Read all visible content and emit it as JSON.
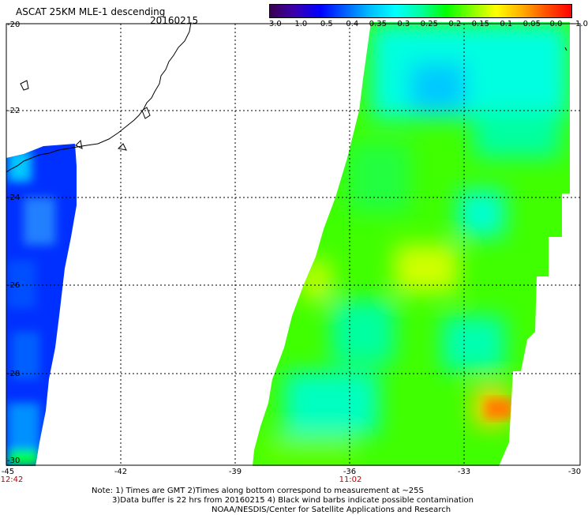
{
  "header": {
    "title": "ASCAT 25KM MLE-1 descending",
    "date": "20160215"
  },
  "colorbar": {
    "labels": [
      "-3.0",
      "-1.0",
      "-0.5",
      "-0.4",
      "-0.35",
      "-0.3",
      "-0.25",
      "-0.2",
      "-0.15",
      "-0.1",
      "-0.05",
      "0.0",
      "1.0"
    ],
    "colors": [
      "#3a0050",
      "#3a00b0",
      "#0000ff",
      "#0060ff",
      "#00c0ff",
      "#00ffff",
      "#00ffa0",
      "#00ff00",
      "#80ff00",
      "#ffff00",
      "#ffb000",
      "#ff5000",
      "#ff0000"
    ]
  },
  "map": {
    "lat_labels": [
      "-20",
      "-22",
      "-24",
      "-26",
      "-28",
      "-30"
    ],
    "lon_labels": [
      "-45",
      "-42",
      "-39",
      "-36",
      "-33",
      "-30"
    ],
    "pass_times": [
      "12:42",
      "11:02"
    ]
  },
  "notes": {
    "line1": "Note: 1) Times are GMT 2)Times along bottom correspond to measurement at ~25S",
    "line2": "3)Data buffer is 22 hrs from 20160215 4) Black wind barbs indicate possible contamination",
    "line3": "NOAA/NESDIS/Center for Satellite Applications and Research"
  }
}
